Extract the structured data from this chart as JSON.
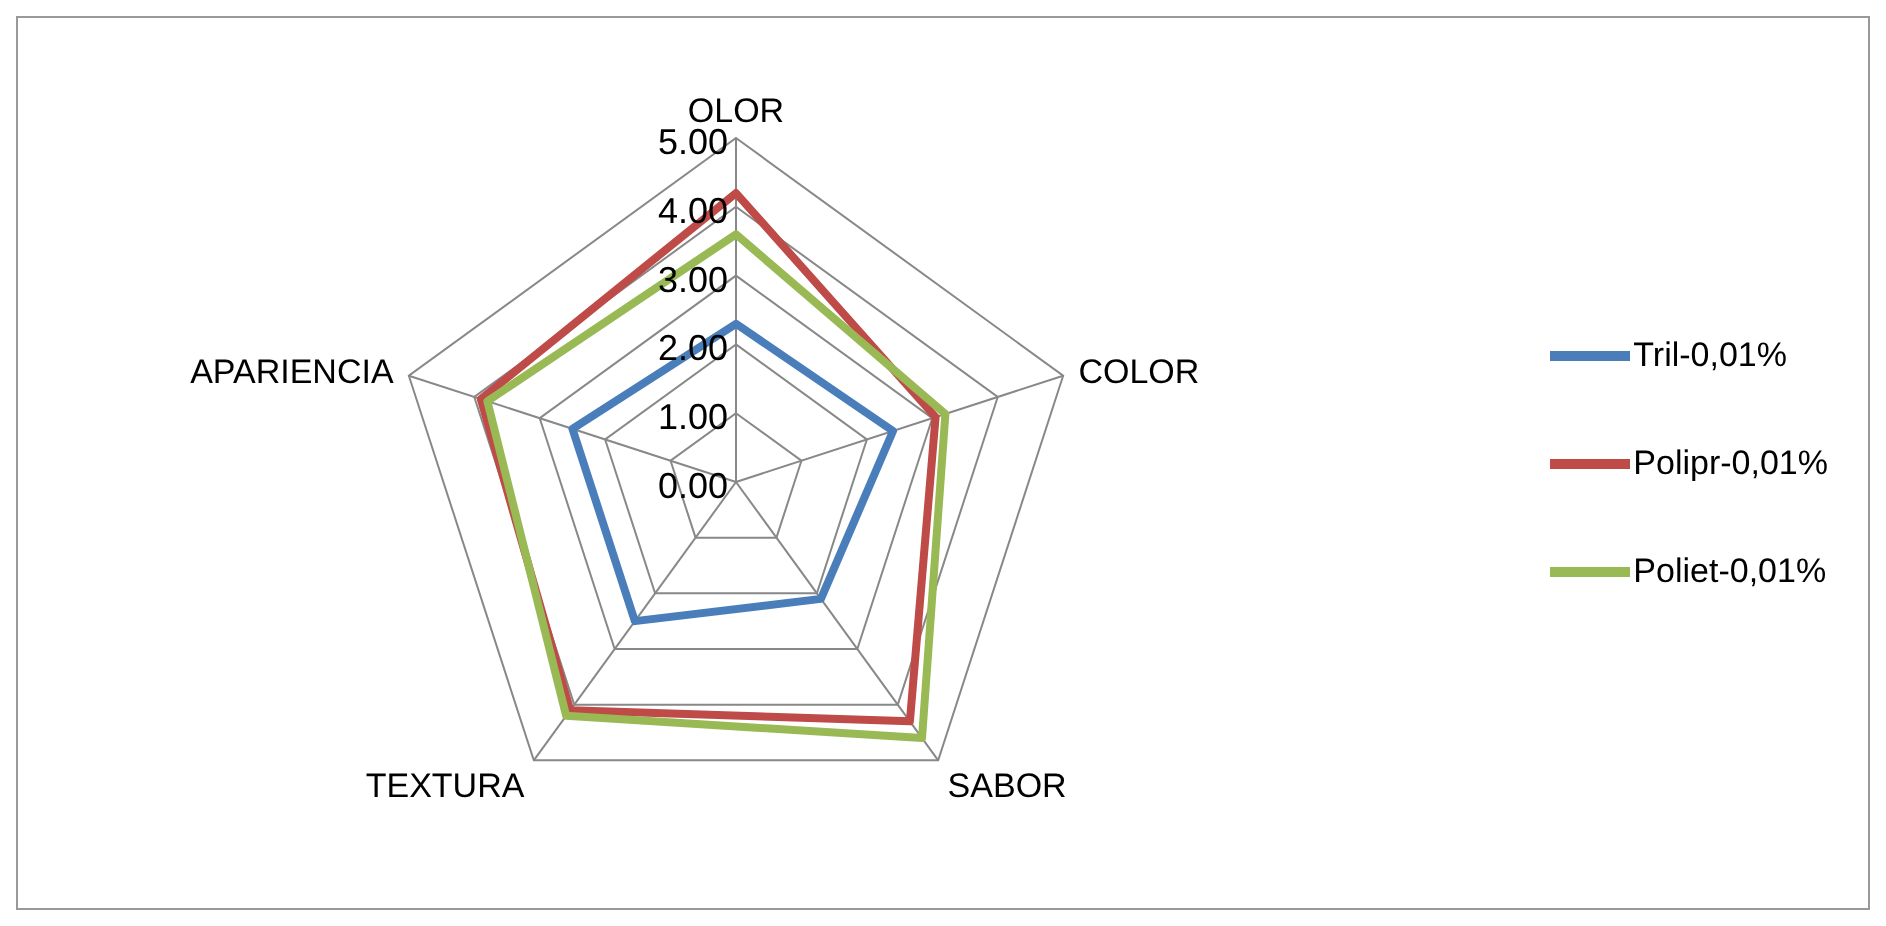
{
  "chart_data": {
    "type": "radar",
    "categories": [
      "OLOR",
      "COLOR",
      "SABOR",
      "TEXTURA",
      "APARIENCIA"
    ],
    "series": [
      {
        "name": "Tril-0,01%",
        "color": "#4a7ebb",
        "values": [
          2.3,
          2.4,
          2.1,
          2.5,
          2.5
        ]
      },
      {
        "name": "Polipr-0,01%",
        "color": "#be4b48",
        "values": [
          4.2,
          3.05,
          4.3,
          4.1,
          3.9
        ]
      },
      {
        "name": "Poliet-0,01%",
        "color": "#98b954",
        "values": [
          3.6,
          3.2,
          4.6,
          4.2,
          3.8
        ]
      }
    ],
    "ylim": [
      0,
      5
    ],
    "yticks": [
      {
        "value": 0,
        "label": "0.00"
      },
      {
        "value": 1,
        "label": "1.00"
      },
      {
        "value": 2,
        "label": "2.00"
      },
      {
        "value": 3,
        "label": "3.00"
      },
      {
        "value": 4,
        "label": "4.00"
      },
      {
        "value": 5,
        "label": "5.00"
      }
    ],
    "grid": true,
    "legend": "right"
  }
}
